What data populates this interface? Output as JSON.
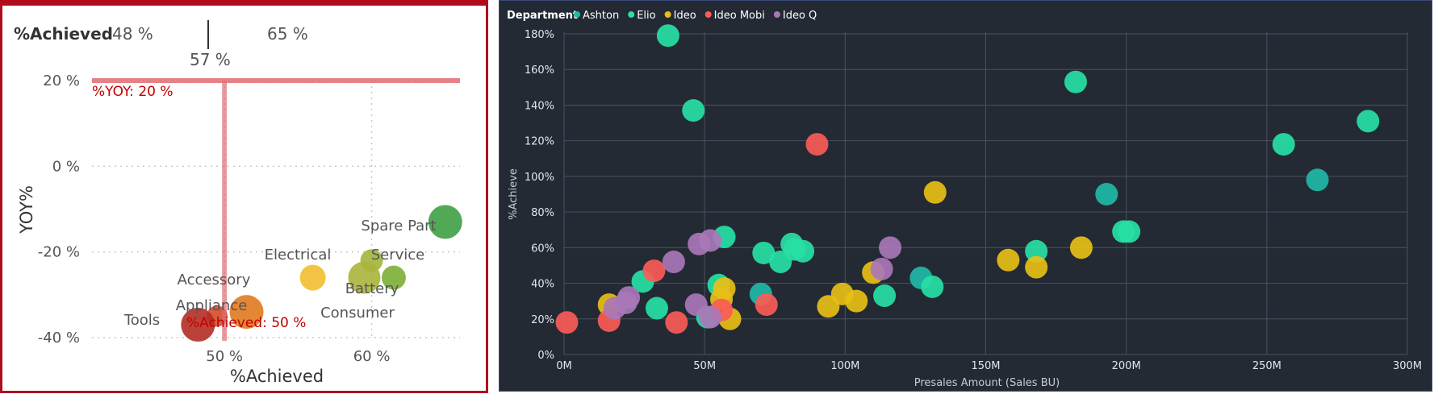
{
  "left": {
    "chart_data": {
      "type": "scatter",
      "title": "",
      "xlabel": "%Achieved",
      "ylabel": "YOY%",
      "xlim": [
        41,
        66
      ],
      "ylim": [
        -40,
        20
      ],
      "x_ticks": [
        "50 %",
        "60 %"
      ],
      "y_ticks": [
        "20 %",
        "0 %",
        "-20 %",
        "-40 %"
      ],
      "gauge": {
        "label": "%Achieved",
        "min_label": "48 %",
        "max_label": "65 %",
        "target_label": "57 %"
      },
      "reference_lines": [
        {
          "axis": "y",
          "value": 20,
          "label": "%YOY: 20 %"
        },
        {
          "axis": "x",
          "value": 50,
          "label": "%Achieved: 50 %"
        }
      ],
      "points": [
        {
          "label": "Spare Part",
          "x": 65,
          "y": -13,
          "color": "#3ea043"
        },
        {
          "label": "Service",
          "x": 61.5,
          "y": -26,
          "color": "#7cae35"
        },
        {
          "label": "Battery",
          "x": 60,
          "y": -22,
          "color": "#a0b53a"
        },
        {
          "label": "Consumer",
          "x": 59.5,
          "y": -26,
          "color": "#a8b43c"
        },
        {
          "label": "Electrical",
          "x": 56,
          "y": -26,
          "color": "#f2be2f"
        },
        {
          "label": "Accessory",
          "x": 51.5,
          "y": -34,
          "color": "#e07a1f"
        },
        {
          "label": "Appliance",
          "x": 49.5,
          "y": -35,
          "color": "#d44a28"
        },
        {
          "label": "Tools",
          "x": 48.2,
          "y": -37,
          "color": "#b32d25"
        }
      ]
    }
  },
  "right": {
    "legend": {
      "title": "Department",
      "items": [
        {
          "label": "Ashton",
          "color": "#1fb8a6"
        },
        {
          "label": "Elio",
          "color": "#27e0a5"
        },
        {
          "label": "Ideo",
          "color": "#e8bf16"
        },
        {
          "label": "Ideo Mobi",
          "color": "#fb5b57"
        },
        {
          "label": "Ideo Q",
          "color": "#a977b8"
        }
      ]
    },
    "chart_data": {
      "type": "scatter",
      "title": "",
      "xlabel": "Presales Amount (Sales BU)",
      "ylabel": "%Achieve",
      "xlim": [
        0,
        300
      ],
      "ylim": [
        0,
        180
      ],
      "x_ticks": [
        "0M",
        "50M",
        "100M",
        "150M",
        "200M",
        "250M",
        "300M"
      ],
      "y_ticks": [
        "0%",
        "20%",
        "40%",
        "60%",
        "80%",
        "100%",
        "120%",
        "140%",
        "160%",
        "180%"
      ],
      "series": [
        {
          "name": "Ashton",
          "color": "#1fb8a6",
          "points": [
            [
              70,
              34
            ],
            [
              127,
              43
            ],
            [
              193,
              90
            ],
            [
              268,
              98
            ]
          ]
        },
        {
          "name": "Elio",
          "color": "#27e0a5",
          "points": [
            [
              37,
              179
            ],
            [
              46,
              137
            ],
            [
              182,
              153
            ],
            [
              256,
              118
            ],
            [
              286,
              131
            ],
            [
              28,
              41
            ],
            [
              33,
              26
            ],
            [
              51,
              21
            ],
            [
              55,
              39
            ],
            [
              57,
              66
            ],
            [
              71,
              57
            ],
            [
              77,
              52
            ],
            [
              81,
              62
            ],
            [
              82,
              59
            ],
            [
              85,
              58
            ],
            [
              114,
              33
            ],
            [
              131,
              38
            ],
            [
              168,
              58
            ],
            [
              199,
              69
            ],
            [
              201,
              69
            ]
          ]
        },
        {
          "name": "Ideo",
          "color": "#e8bf16",
          "points": [
            [
              16,
              28
            ],
            [
              56,
              31
            ],
            [
              57,
              37
            ],
            [
              59,
              20
            ],
            [
              94,
              27
            ],
            [
              99,
              34
            ],
            [
              104,
              30
            ],
            [
              110,
              46
            ],
            [
              132,
              91
            ],
            [
              158,
              53
            ],
            [
              168,
              49
            ],
            [
              184,
              60
            ]
          ]
        },
        {
          "name": "Ideo Mobi",
          "color": "#fb5b57",
          "points": [
            [
              90,
              118
            ],
            [
              32,
              47
            ],
            [
              40,
              18
            ],
            [
              56,
              25
            ],
            [
              72,
              28
            ],
            [
              16,
              19
            ],
            [
              1,
              18
            ]
          ]
        },
        {
          "name": "Ideo Q",
          "color": "#a977b8",
          "points": [
            [
              18,
              26
            ],
            [
              22,
              29
            ],
            [
              23,
              32
            ],
            [
              39,
              52
            ],
            [
              47,
              28
            ],
            [
              48,
              62
            ],
            [
              52,
              64
            ],
            [
              113,
              48
            ],
            [
              116,
              60
            ],
            [
              52,
              21
            ]
          ]
        }
      ]
    }
  }
}
